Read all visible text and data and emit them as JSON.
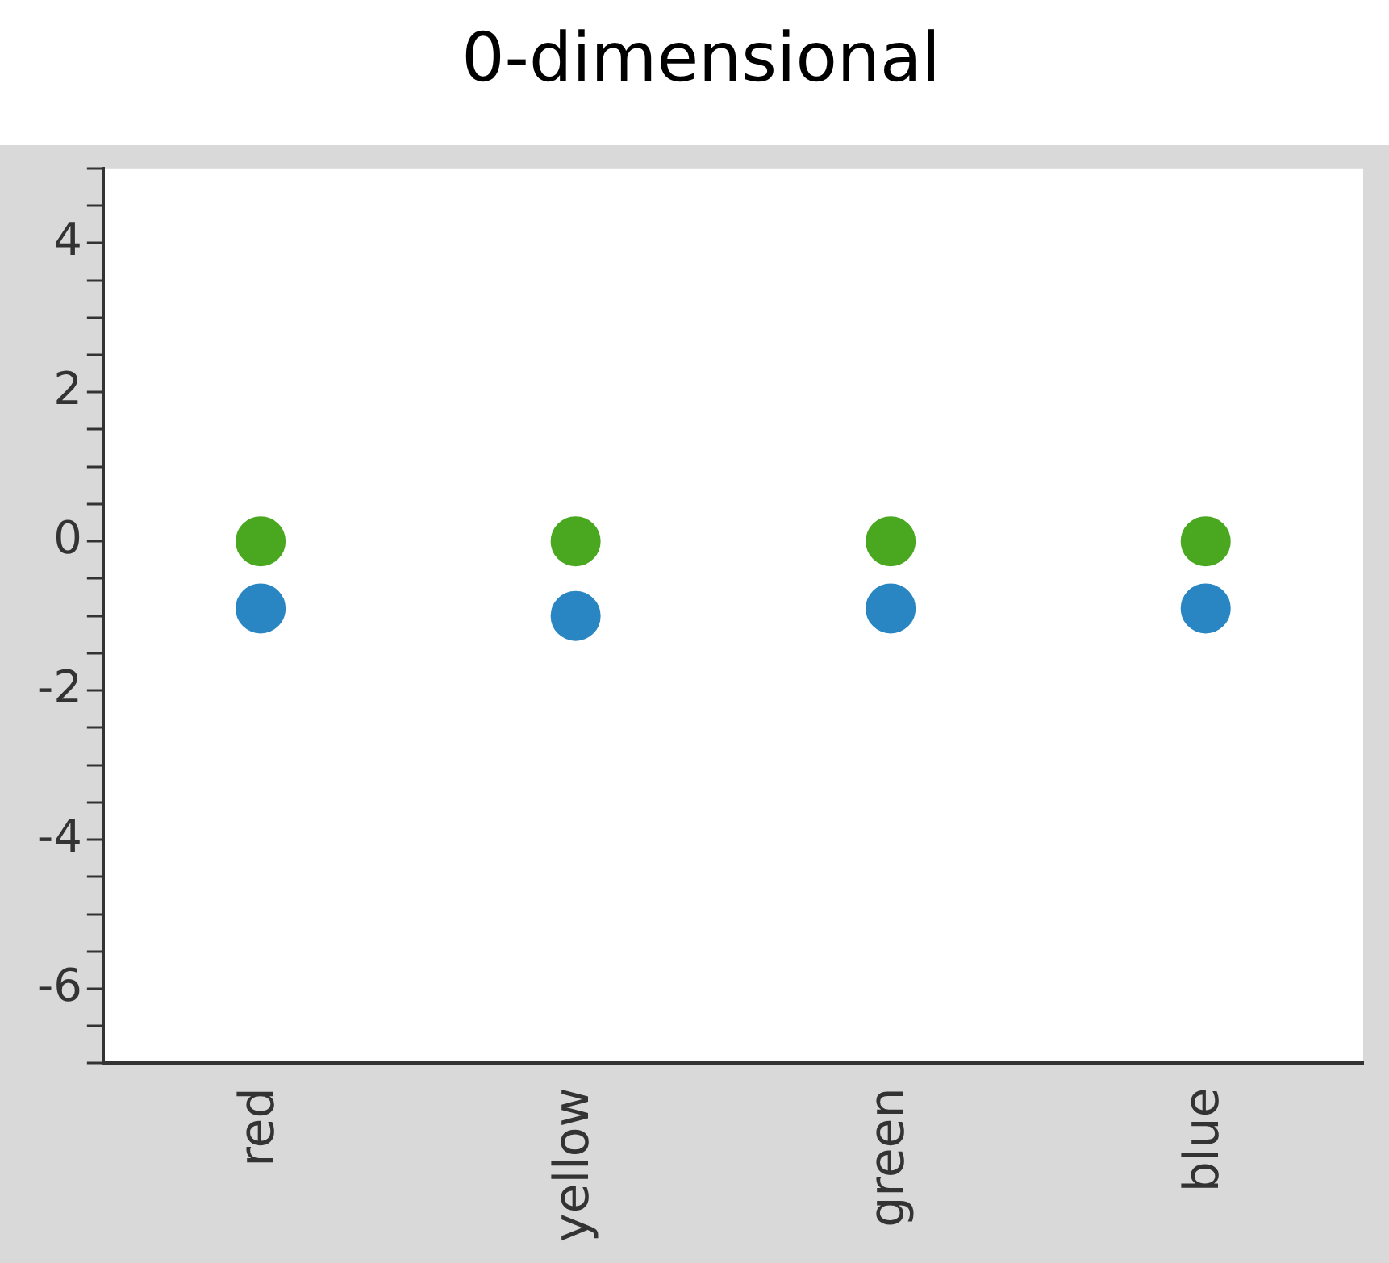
{
  "chart_data": {
    "type": "scatter",
    "title": "0-dimensional",
    "categories": [
      "red",
      "yellow",
      "green",
      "blue"
    ],
    "series": [
      {
        "color": "#4aa820",
        "values": [
          0,
          0,
          0,
          0
        ]
      },
      {
        "color": "#2a86c2",
        "values": [
          -0.9,
          -1.0,
          -0.9,
          -0.9
        ]
      }
    ],
    "ylim": [
      -7,
      5
    ],
    "yticks": [
      {
        "value": -7,
        "label": null
      },
      {
        "value": -6.5,
        "label": null
      },
      -6,
      {
        "value": -5.5,
        "label": null
      },
      {
        "value": -5,
        "label": null
      },
      {
        "value": -4.5,
        "label": null
      },
      -4,
      {
        "value": -3.5,
        "label": null
      },
      {
        "value": -3,
        "label": null
      },
      {
        "value": -2.5,
        "label": null
      },
      -2,
      {
        "value": -1.5,
        "label": null
      },
      {
        "value": -1,
        "label": null
      },
      {
        "value": -0.5,
        "label": null
      },
      0,
      {
        "value": 0.5,
        "label": null
      },
      {
        "value": 1,
        "label": null
      },
      {
        "value": 1.5,
        "label": null
      },
      2,
      {
        "value": 2.5,
        "label": null
      },
      {
        "value": 3,
        "label": null
      },
      {
        "value": 3.5,
        "label": null
      },
      4,
      {
        "value": 4.5,
        "label": null
      },
      {
        "value": 5,
        "label": null
      }
    ],
    "grid": false,
    "legend": false,
    "marker": "circle"
  }
}
